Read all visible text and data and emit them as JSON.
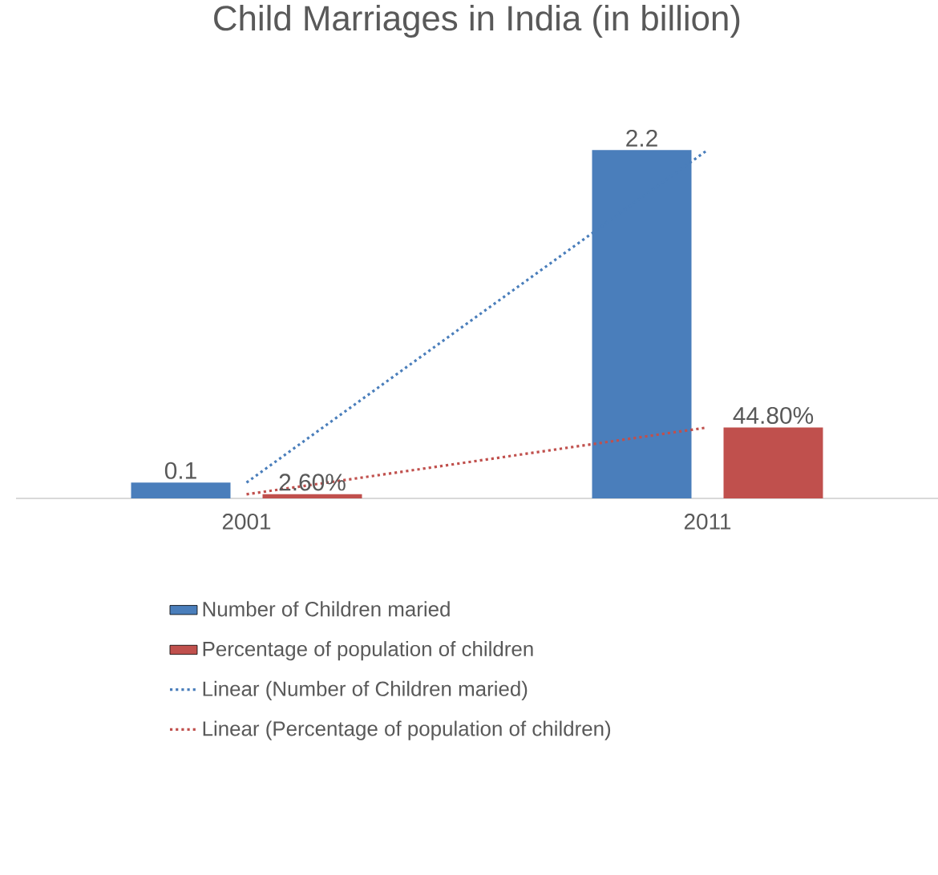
{
  "chart_data": {
    "type": "bar",
    "title": "Child Marriages in India (in billion)",
    "categories": [
      "2001",
      "2011"
    ],
    "series": [
      {
        "name": "Number of Children maried",
        "color": "#4a7ebb",
        "values": [
          0.1,
          2.2
        ],
        "value_labels": [
          "0.1",
          "2.2"
        ]
      },
      {
        "name": "Percentage of population of children",
        "color": "#c0504d",
        "values": [
          0.026,
          0.448
        ],
        "value_labels": [
          "2.60%",
          "44.80%"
        ]
      },
      {
        "name": "Linear (Number of Children maried)",
        "type": "line",
        "line_style": "dotted",
        "color": "#4a7ebb",
        "values": [
          0.1,
          2.2
        ]
      },
      {
        "name": "Linear (Percentage of population of children)",
        "type": "line",
        "line_style": "dotted",
        "color": "#c0504d",
        "values": [
          0.026,
          0.448
        ]
      }
    ],
    "legend": "bottom",
    "grid": false,
    "marker": "none"
  }
}
